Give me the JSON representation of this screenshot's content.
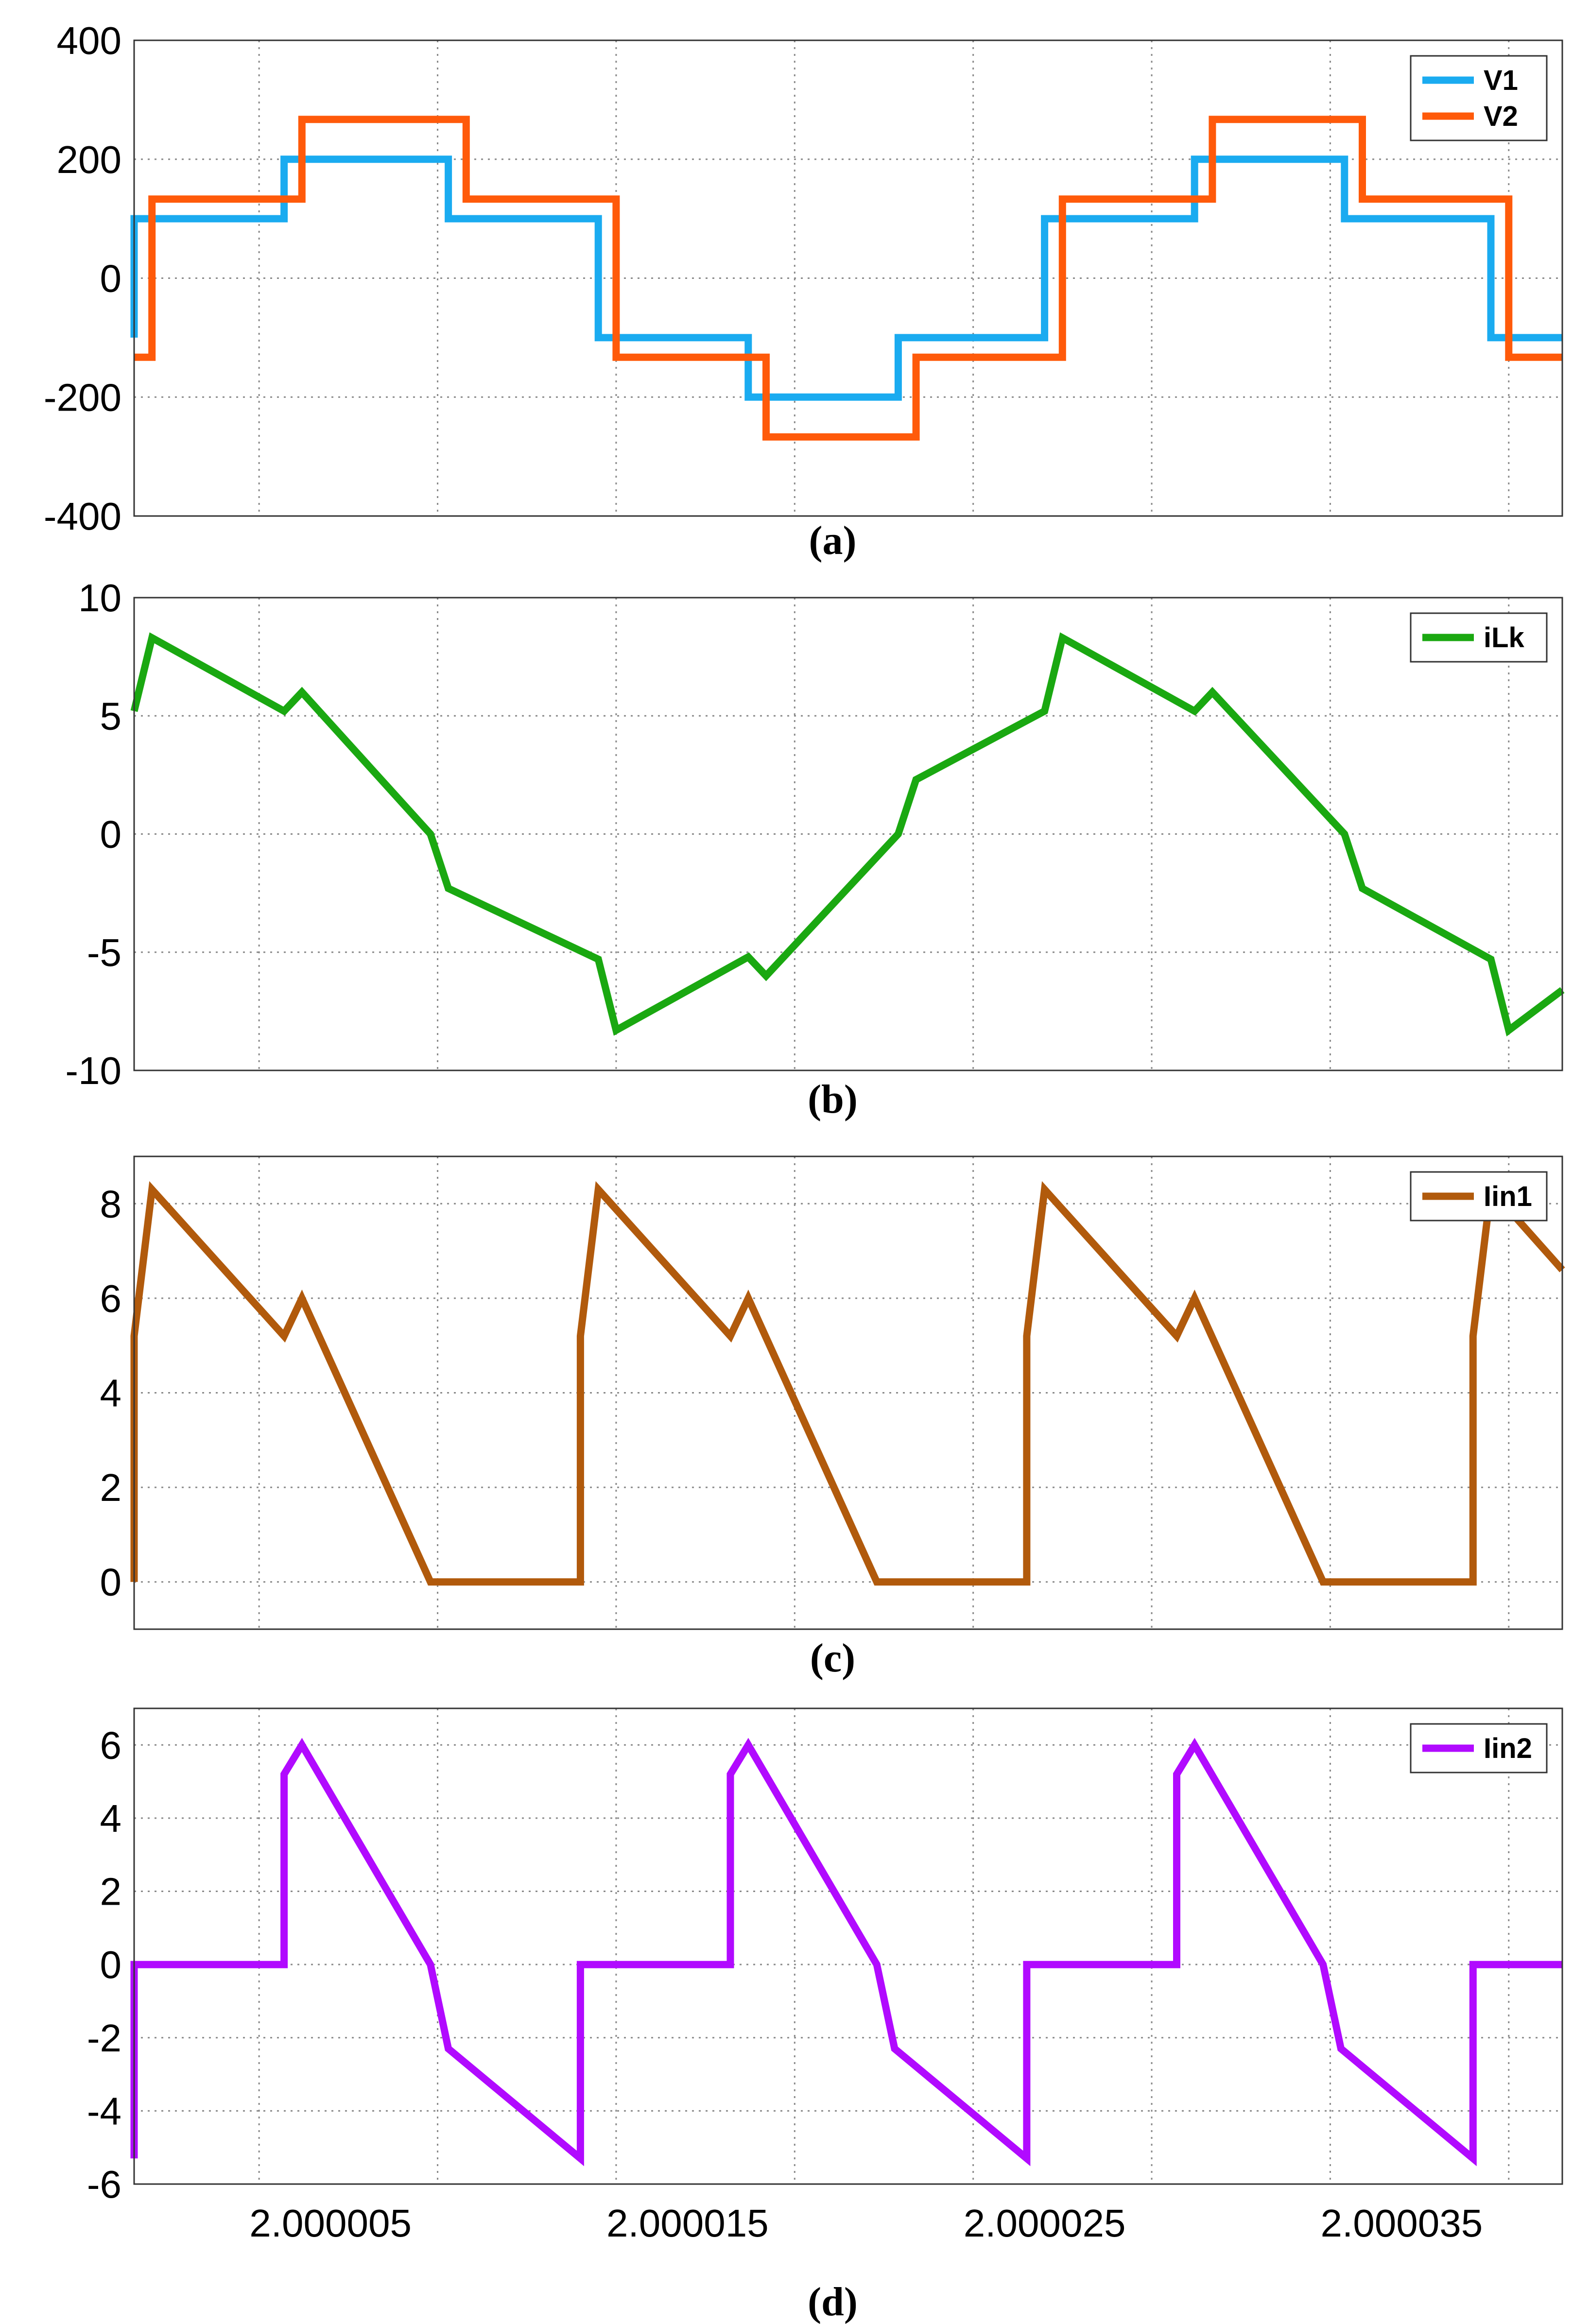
{
  "chart_data": [
    {
      "type": "line",
      "caption": "(a)",
      "xlim": [
        1.9999995,
        2.0000395
      ],
      "ylim": [
        -400,
        400
      ],
      "yticks": [
        400,
        200,
        0,
        -200,
        -400
      ],
      "y_tick_labels": [
        "400",
        "200",
        "0",
        "-200",
        "-400"
      ],
      "grid": true,
      "legend": "top-right",
      "series": [
        {
          "name": "V1",
          "color": "#1aabf0",
          "points": [
            [
              1.9999995,
              -100
            ],
            [
              1.9999995,
              100
            ],
            [
              2.0000037,
              100
            ],
            [
              2.0000037,
              200
            ],
            [
              2.0000083,
              200
            ],
            [
              2.0000083,
              100
            ],
            [
              2.0000125,
              100
            ],
            [
              2.0000125,
              -100
            ],
            [
              2.0000167,
              -100
            ],
            [
              2.0000167,
              -200
            ],
            [
              2.0000209,
              -200
            ],
            [
              2.0000209,
              -100
            ],
            [
              2.000025,
              -100
            ],
            [
              2.000025,
              100
            ],
            [
              2.0000292,
              100
            ],
            [
              2.0000292,
              200
            ],
            [
              2.0000334,
              200
            ],
            [
              2.0000334,
              100
            ],
            [
              2.0000375,
              100
            ],
            [
              2.0000375,
              -100
            ],
            [
              2.0000395,
              -100
            ]
          ]
        },
        {
          "name": "V2",
          "color": "#ff5a0a",
          "points": [
            [
              1.9999995,
              -133
            ],
            [
              2.0,
              -133
            ],
            [
              2.0,
              133
            ],
            [
              2.0000042,
              133
            ],
            [
              2.0000042,
              267
            ],
            [
              2.0000088,
              267
            ],
            [
              2.0000088,
              133
            ],
            [
              2.000013,
              133
            ],
            [
              2.000013,
              -133
            ],
            [
              2.0000172,
              -133
            ],
            [
              2.0000172,
              -267
            ],
            [
              2.0000214,
              -267
            ],
            [
              2.0000214,
              -133
            ],
            [
              2.0000255,
              -133
            ],
            [
              2.0000255,
              133
            ],
            [
              2.0000297,
              133
            ],
            [
              2.0000297,
              267
            ],
            [
              2.0000339,
              267
            ],
            [
              2.0000339,
              133
            ],
            [
              2.000038,
              133
            ],
            [
              2.000038,
              -133
            ],
            [
              2.0000395,
              -133
            ]
          ]
        }
      ]
    },
    {
      "type": "line",
      "caption": "(b)",
      "xlim": [
        1.9999995,
        2.0000395
      ],
      "ylim": [
        -10,
        10
      ],
      "yticks": [
        10,
        5,
        0,
        -5,
        -10
      ],
      "y_tick_labels": [
        "10",
        "5",
        "0",
        "-5",
        "-10"
      ],
      "grid": true,
      "legend": "top-right",
      "series": [
        {
          "name": "iLk",
          "color": "#1aa811",
          "points": [
            [
              1.9999995,
              5.2
            ],
            [
              2.0,
              8.3
            ],
            [
              2.0000037,
              5.2
            ],
            [
              2.0000042,
              6.0
            ],
            [
              2.0000078,
              0
            ],
            [
              2.0000083,
              -2.3
            ],
            [
              2.0000125,
              -5.3
            ],
            [
              2.000013,
              -8.3
            ],
            [
              2.0000167,
              -5.2
            ],
            [
              2.0000172,
              -6.0
            ],
            [
              2.0000209,
              0
            ],
            [
              2.0000214,
              2.3
            ],
            [
              2.000025,
              5.2
            ],
            [
              2.0000255,
              8.3
            ],
            [
              2.0000292,
              5.2
            ],
            [
              2.0000297,
              6.0
            ],
            [
              2.0000334,
              0
            ],
            [
              2.0000339,
              -2.3
            ],
            [
              2.0000375,
              -5.3
            ],
            [
              2.000038,
              -8.3
            ],
            [
              2.0000395,
              -6.6
            ]
          ]
        }
      ]
    },
    {
      "type": "line",
      "caption": "(c)",
      "xlim": [
        1.9999995,
        2.0000395
      ],
      "ylim": [
        -1,
        9
      ],
      "yticks": [
        8,
        6,
        4,
        2,
        0
      ],
      "y_tick_labels": [
        "8",
        "6",
        "4",
        "2",
        "0"
      ],
      "grid": true,
      "legend": "top-right",
      "series": [
        {
          "name": "Iin1",
          "color": "#b15a0c",
          "points": [
            [
              1.9999995,
              0
            ],
            [
              1.9999995,
              5.2
            ],
            [
              2.0,
              8.3
            ],
            [
              2.0000037,
              5.2
            ],
            [
              2.0000042,
              6.0
            ],
            [
              2.0000078,
              0
            ],
            [
              2.000012,
              0
            ],
            [
              2.000012,
              5.2
            ],
            [
              2.0000125,
              8.3
            ],
            [
              2.0000162,
              5.2
            ],
            [
              2.0000167,
              6.0
            ],
            [
              2.0000203,
              0
            ],
            [
              2.0000245,
              0
            ],
            [
              2.0000245,
              5.2
            ],
            [
              2.000025,
              8.3
            ],
            [
              2.0000287,
              5.2
            ],
            [
              2.0000292,
              6.0
            ],
            [
              2.0000328,
              0
            ],
            [
              2.000037,
              0
            ],
            [
              2.000037,
              5.2
            ],
            [
              2.0000375,
              8.3
            ],
            [
              2.0000395,
              6.6
            ]
          ]
        }
      ]
    },
    {
      "type": "line",
      "caption": "(d)",
      "xlim": [
        1.9999995,
        2.0000395
      ],
      "ylim": [
        -6,
        7
      ],
      "yticks": [
        6,
        4,
        2,
        0,
        -2,
        -4,
        -6
      ],
      "y_tick_labels": [
        "6",
        "4",
        "2",
        "0",
        "-2",
        "-4",
        "-6"
      ],
      "xticks": [
        2.000005,
        2.000015,
        2.000025,
        2.000035
      ],
      "x_tick_labels": [
        "2.000005",
        "2.000015",
        "2.000025",
        "2.000035"
      ],
      "grid": true,
      "legend": "top-right",
      "series": [
        {
          "name": "Iin2",
          "color": "#b10aff",
          "points": [
            [
              1.9999995,
              -5.3
            ],
            [
              1.9999995,
              0
            ],
            [
              2.0000037,
              0
            ],
            [
              2.0000037,
              5.2
            ],
            [
              2.0000042,
              6.0
            ],
            [
              2.0000078,
              0
            ],
            [
              2.0000083,
              -2.3
            ],
            [
              2.000012,
              -5.3
            ],
            [
              2.000012,
              0
            ],
            [
              2.0000162,
              0
            ],
            [
              2.0000162,
              5.2
            ],
            [
              2.0000167,
              6.0
            ],
            [
              2.0000203,
              0
            ],
            [
              2.0000208,
              -2.3
            ],
            [
              2.0000245,
              -5.3
            ],
            [
              2.0000245,
              0
            ],
            [
              2.0000287,
              0
            ],
            [
              2.0000287,
              5.2
            ],
            [
              2.0000292,
              6.0
            ],
            [
              2.0000328,
              0
            ],
            [
              2.0000333,
              -2.3
            ],
            [
              2.000037,
              -5.3
            ],
            [
              2.000037,
              0
            ],
            [
              2.0000395,
              0
            ]
          ]
        }
      ]
    }
  ]
}
